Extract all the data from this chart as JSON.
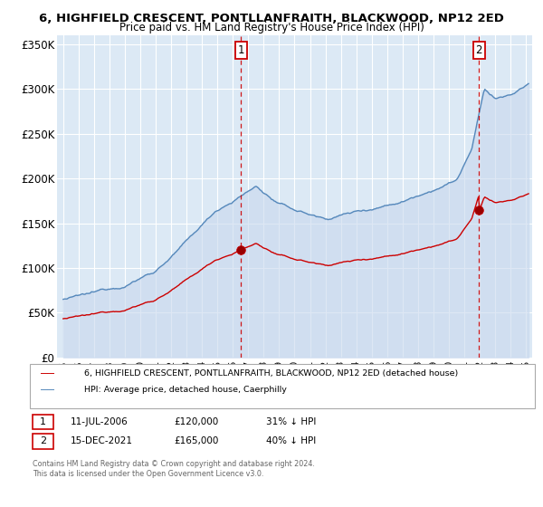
{
  "title1": "6, HIGHFIELD CRESCENT, PONTLLANFRAITH, BLACKWOOD, NP12 2ED",
  "title2": "Price paid vs. HM Land Registry's House Price Index (HPI)",
  "legend_red": "6, HIGHFIELD CRESCENT, PONTLLANFRAITH, BLACKWOOD, NP12 2ED (detached house)",
  "legend_blue": "HPI: Average price, detached house, Caerphilly",
  "annotation1_label": "1",
  "annotation1_date": "11-JUL-2006",
  "annotation1_price": "£120,000",
  "annotation1_hpi": "31% ↓ HPI",
  "annotation2_label": "2",
  "annotation2_date": "15-DEC-2021",
  "annotation2_price": "£165,000",
  "annotation2_hpi": "40% ↓ HPI",
  "footer1": "Contains HM Land Registry data © Crown copyright and database right 2024.",
  "footer2": "This data is licensed under the Open Government Licence v3.0.",
  "sale1_year": 2006.53,
  "sale1_price": 120000,
  "sale2_year": 2021.96,
  "sale2_price": 165000,
  "ylim": [
    0,
    360000
  ],
  "yticks": [
    0,
    50000,
    100000,
    150000,
    200000,
    250000,
    300000,
    350000
  ],
  "ytick_labels": [
    "£0",
    "£50K",
    "£100K",
    "£150K",
    "£200K",
    "£250K",
    "£300K",
    "£350K"
  ],
  "background_color": "#dce9f5",
  "grid_color": "#ffffff",
  "red_color": "#cc0000",
  "blue_color": "#5588bb",
  "fill_color": "#c8d8ee",
  "annotation_box_color": "#cc0000",
  "dashed_line_color": "#cc0000"
}
